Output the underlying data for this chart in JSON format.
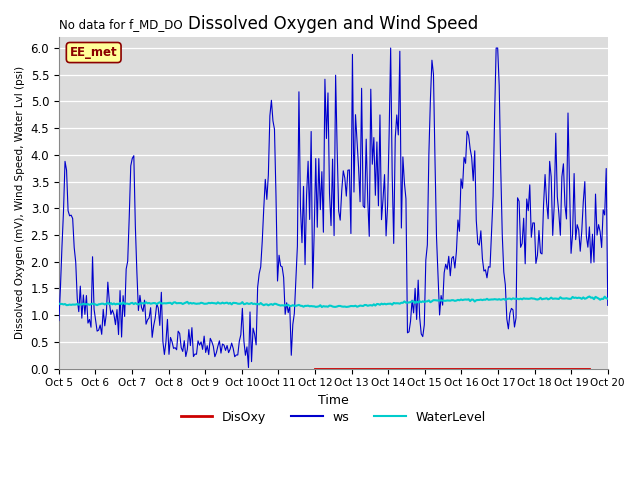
{
  "title": "Dissolved Oxygen and Wind Speed",
  "top_left_text": "No data for f_MD_DO",
  "xlabel": "Time",
  "ylabel": "Dissolved Oxygen (mV), Wind Speed, Water Lvl (psi)",
  "ylim": [
    0.0,
    6.2
  ],
  "xlim": [
    0,
    15
  ],
  "background_color": "#dcdcdc",
  "annotation_box_text": "EE_met",
  "annotation_box_color": "#ffff99",
  "annotation_box_border": "#8b0000",
  "xtick_labels": [
    "Oct 5",
    "Oct 6",
    "Oct 7",
    "Oct 8",
    "Oct 9",
    "Oct 10",
    "Oct 11",
    "Oct 12",
    "Oct 13",
    "Oct 14",
    "Oct 15",
    "Oct 16",
    "Oct 17",
    "Oct 18",
    "Oct 19",
    "Oct 20"
  ],
  "ytick_values": [
    0.0,
    0.5,
    1.0,
    1.5,
    2.0,
    2.5,
    3.0,
    3.5,
    4.0,
    4.5,
    5.0,
    5.5,
    6.0
  ],
  "ws_color": "#0000cc",
  "disoxy_color": "#cc0000",
  "waterlevel_color": "#00cccc",
  "ws_linewidth": 0.8,
  "disoxy_linewidth": 2.0,
  "waterlevel_linewidth": 1.5,
  "figsize": [
    6.4,
    4.8
  ],
  "dpi": 100
}
